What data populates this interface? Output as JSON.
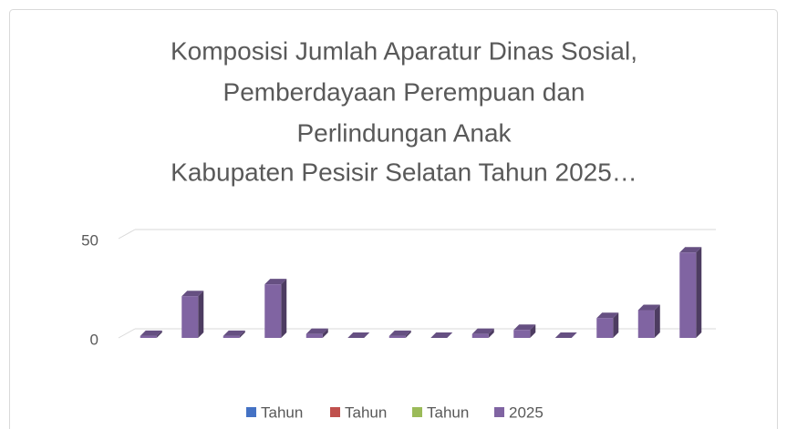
{
  "chart_data": {
    "type": "bar",
    "title": [
      "Komposisi Jumlah Aparatur Dinas Sosial,",
      "Pemberdayaan Perempuan dan",
      "Perlindungan Anak",
      "Kabupaten Pesisir Selatan Tahun 2025…"
    ],
    "categories": [
      null,
      null,
      null,
      null,
      null,
      null,
      null,
      null,
      null,
      null,
      null,
      null,
      null,
      null
    ],
    "series": [
      {
        "name": "Tahun",
        "color": "#4472c4",
        "values": [
          null,
          null,
          null,
          null,
          null,
          null,
          null,
          null,
          null,
          null,
          null,
          null,
          null,
          null
        ]
      },
      {
        "name": "Tahun",
        "color": "#c0504d",
        "values": [
          null,
          null,
          null,
          null,
          null,
          null,
          null,
          null,
          null,
          null,
          null,
          null,
          null,
          null
        ]
      },
      {
        "name": "Tahun",
        "color": "#9bbb59",
        "values": [
          null,
          null,
          null,
          null,
          null,
          null,
          null,
          null,
          null,
          null,
          null,
          null,
          null,
          null
        ]
      },
      {
        "name": "2025",
        "color": "#8064a2",
        "values": [
          1,
          21,
          1,
          27,
          2,
          0,
          1,
          0,
          2,
          4,
          0,
          10,
          14,
          43
        ]
      }
    ],
    "ylim": [
      0,
      50
    ],
    "yticks": [
      0,
      50
    ],
    "grid": true,
    "legend": "bottom"
  }
}
